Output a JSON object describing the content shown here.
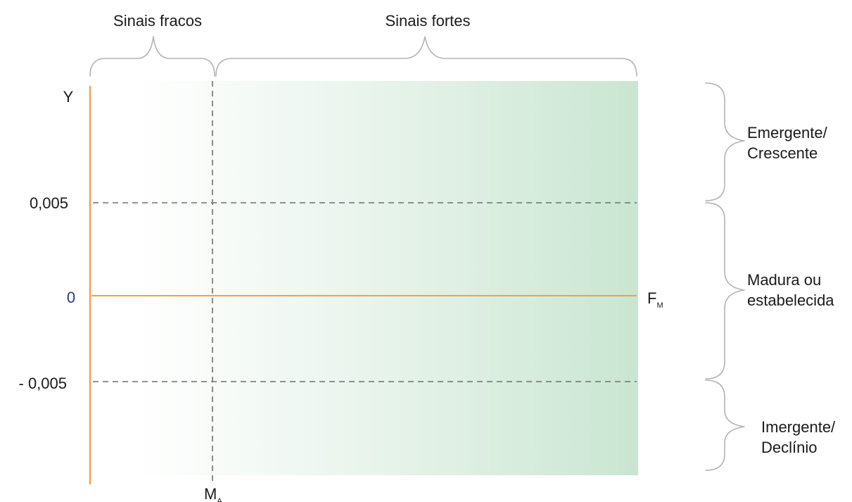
{
  "top_labels": {
    "weak": "Sinais fracos",
    "strong": "Sinais fortes"
  },
  "y_axis": {
    "label": "Y",
    "ticks": [
      "0,005",
      "0",
      "- 0,005"
    ]
  },
  "x_axis": {
    "label": "F",
    "label_sub": "M",
    "divider_label": "M",
    "divider_sub": "A"
  },
  "zones": [
    {
      "line1": "Emergente/",
      "line2": "Crescente"
    },
    {
      "line1": "Madura ou",
      "line2": "estabelecida"
    },
    {
      "line1": "Imergente/",
      "line2": "Declínio"
    }
  ],
  "colors": {
    "axis": "#f0a04b",
    "gradient_end": "#c9e6d2",
    "zero_label": "#2b3a8c"
  }
}
